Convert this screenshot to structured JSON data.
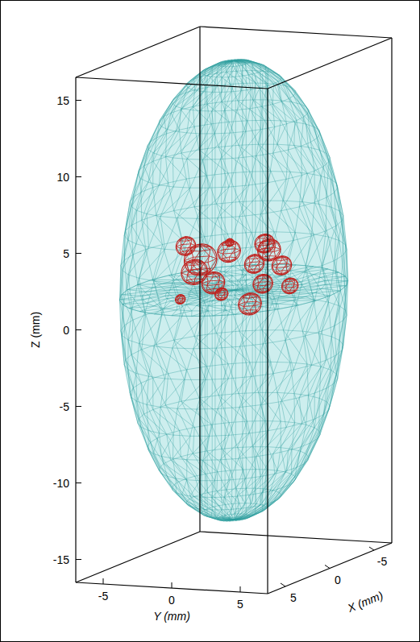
{
  "chart_data": {
    "type": "mesh3d",
    "xlabel": "X (mm)",
    "ylabel": "Y (mm)",
    "zlabel": "Z (mm)",
    "xlim": [
      -7,
      7
    ],
    "ylim": [
      -7,
      7
    ],
    "zlim": [
      -16.5,
      16.5
    ],
    "xticks": [
      -5,
      0,
      5
    ],
    "yticks": [
      -5,
      0,
      5
    ],
    "zticks": [
      -15,
      -10,
      -5,
      0,
      5,
      10,
      15
    ],
    "ellipsoid": {
      "center": [
        0,
        0,
        1.3
      ],
      "radii": [
        7,
        7,
        15
      ],
      "color": "#2a9d9d"
    },
    "inclusions": {
      "color": "#c0201c",
      "x": [
        0,
        0.5,
        -0.5,
        0,
        1,
        -1,
        0.5,
        0,
        0,
        -0.5,
        0,
        0.5,
        0,
        0,
        0
      ],
      "y": [
        -3.5,
        -2.1,
        -3.2,
        -1.5,
        0.3,
        1.6,
        2.9,
        3.5,
        1.5,
        1.8,
        4.1,
        1.5,
        -0.9,
        -3.9,
        -0.3
      ],
      "z": [
        4.0,
        3.3,
        2.2,
        1.7,
        4.1,
        4.2,
        4.2,
        3.1,
        3.1,
        1.7,
        1.8,
        0.6,
        1.0,
        0.5,
        4.4
      ],
      "r": [
        0.6,
        1.0,
        0.8,
        0.7,
        0.7,
        0.6,
        0.7,
        0.6,
        0.6,
        0.6,
        0.5,
        0.7,
        0.4,
        0.3,
        0.25
      ]
    }
  }
}
